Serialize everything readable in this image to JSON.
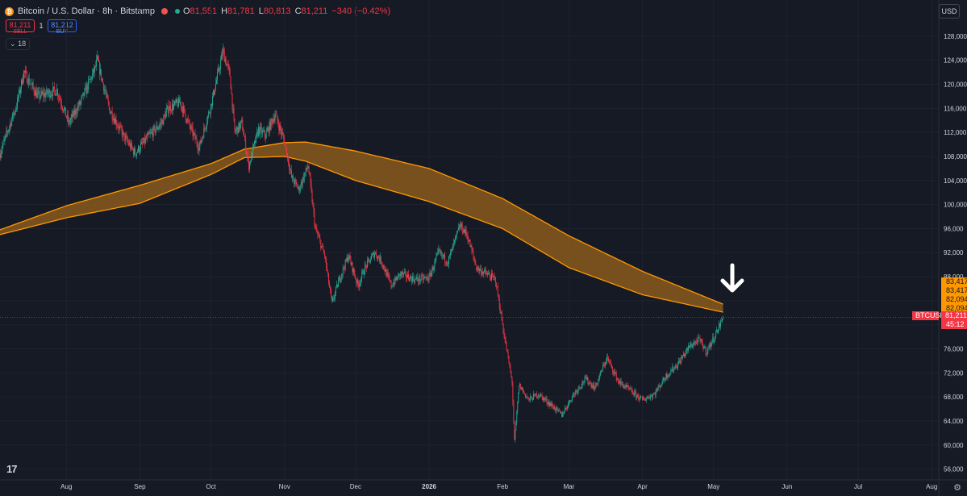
{
  "header": {
    "symbol": "Bitcoin / U.S. Dollar · 8h · Bitstamp",
    "ohlc": [
      {
        "k": "O",
        "v": "81,551"
      },
      {
        "k": "H",
        "v": "81,781"
      },
      {
        "k": "L",
        "v": "80,813"
      },
      {
        "k": "C",
        "v": "81,211"
      }
    ],
    "change": "−340 (−0.42%)",
    "currency": "USD"
  },
  "trade": {
    "sell_price": "81,211",
    "sell_label": "SELL",
    "qty": "1",
    "buy_price": "81,212",
    "buy_label": "BUY"
  },
  "indicators": {
    "count": "18"
  },
  "labels": {
    "band_values": [
      "83,417",
      "83,417",
      "82,094",
      "82,094"
    ],
    "symbol_tag": "BTCUSD",
    "last_price": "81,211",
    "countdown": "45:12"
  },
  "colors": {
    "background": "#161a25",
    "band_fill": "#8a5a1d",
    "band_line": "#ff9800",
    "up": "#22ab94",
    "down": "#f23645",
    "arrow": "#ffffff"
  },
  "chart_data": {
    "type": "candlestick",
    "title": "Bitcoin / U.S. Dollar · 8h · Bitstamp",
    "interval": "8h",
    "yaxis": {
      "ticks": [
        56000,
        60000,
        64000,
        68000,
        72000,
        76000,
        80000,
        84000,
        88000,
        92000,
        96000,
        100000,
        104000,
        108000,
        112000,
        116000,
        120000,
        124000,
        128000
      ],
      "tick_labels": [
        "56,000",
        "60,000",
        "64,000",
        "68,000",
        "72,000",
        "76,000",
        "80,000",
        "84,000",
        "88,000",
        "92,000",
        "96,000",
        "100,000",
        "104,000",
        "108,000",
        "112,000",
        "116,000",
        "120,000",
        "124,000",
        "128,000"
      ],
      "range": [
        54200,
        130000
      ],
      "position": "right"
    },
    "xaxis": {
      "ticks": [
        "Aug",
        "Sep",
        "Oct",
        "Nov",
        "Dec",
        "2026",
        "Feb",
        "Mar",
        "Apr",
        "May",
        "Jun",
        "Jul",
        "Aug"
      ],
      "tick_dates": [
        "2025-08-01",
        "2025-09-01",
        "2025-10-01",
        "2025-11-01",
        "2025-12-01",
        "2026-01-01",
        "2026-02-01",
        "2026-03-01",
        "2026-04-01",
        "2026-05-01",
        "2026-06-01",
        "2026-07-01",
        "2026-08-01"
      ],
      "range": [
        "2025-07-04",
        "2026-08-04"
      ]
    },
    "grid": true,
    "price_path": [
      [
        "2025-07-04",
        108500
      ],
      [
        "2025-07-11",
        116500
      ],
      [
        "2025-07-14",
        122000
      ],
      [
        "2025-07-20",
        118000
      ],
      [
        "2025-07-28",
        119000
      ],
      [
        "2025-08-02",
        113500
      ],
      [
        "2025-08-07",
        117000
      ],
      [
        "2025-08-13",
        122500
      ],
      [
        "2025-08-14",
        124000
      ],
      [
        "2025-08-19",
        116000
      ],
      [
        "2025-08-25",
        111500
      ],
      [
        "2025-08-30",
        108500
      ],
      [
        "2025-09-05",
        111500
      ],
      [
        "2025-09-10",
        113500
      ],
      [
        "2025-09-13",
        116000
      ],
      [
        "2025-09-18",
        117000
      ],
      [
        "2025-09-22",
        113000
      ],
      [
        "2025-09-26",
        109500
      ],
      [
        "2025-10-01",
        116500
      ],
      [
        "2025-10-06",
        125500
      ],
      [
        "2025-10-09",
        121500
      ],
      [
        "2025-10-11",
        112000
      ],
      [
        "2025-10-14",
        113500
      ],
      [
        "2025-10-17",
        106500
      ],
      [
        "2025-10-21",
        112500
      ],
      [
        "2025-10-24",
        111500
      ],
      [
        "2025-10-28",
        115000
      ],
      [
        "2025-11-01",
        110500
      ],
      [
        "2025-11-04",
        104500
      ],
      [
        "2025-11-07",
        102500
      ],
      [
        "2025-11-11",
        106500
      ],
      [
        "2025-11-14",
        96000
      ],
      [
        "2025-11-18",
        91500
      ],
      [
        "2025-11-21",
        83500
      ],
      [
        "2025-11-24",
        87500
      ],
      [
        "2025-11-28",
        91500
      ],
      [
        "2025-12-02",
        86500
      ],
      [
        "2025-12-05",
        89500
      ],
      [
        "2025-12-09",
        92000
      ],
      [
        "2025-12-12",
        90500
      ],
      [
        "2025-12-16",
        86500
      ],
      [
        "2025-12-20",
        88500
      ],
      [
        "2025-12-26",
        87500
      ],
      [
        "2026-01-01",
        87800
      ],
      [
        "2026-01-05",
        92000
      ],
      [
        "2026-01-09",
        90500
      ],
      [
        "2026-01-14",
        96500
      ],
      [
        "2026-01-17",
        95000
      ],
      [
        "2026-01-21",
        89500
      ],
      [
        "2026-01-25",
        88500
      ],
      [
        "2026-01-29",
        87500
      ],
      [
        "2026-02-02",
        77500
      ],
      [
        "2026-02-05",
        70500
      ],
      [
        "2026-02-06",
        60500
      ],
      [
        "2026-02-08",
        70000
      ],
      [
        "2026-02-12",
        67500
      ],
      [
        "2026-02-16",
        68500
      ],
      [
        "2026-02-22",
        66500
      ],
      [
        "2026-02-26",
        65000
      ],
      [
        "2026-03-03",
        68500
      ],
      [
        "2026-03-08",
        71000
      ],
      [
        "2026-03-12",
        69500
      ],
      [
        "2026-03-17",
        74500
      ],
      [
        "2026-03-22",
        70500
      ],
      [
        "2026-03-27",
        69000
      ],
      [
        "2026-04-01",
        67500
      ],
      [
        "2026-04-06",
        68500
      ],
      [
        "2026-04-11",
        71500
      ],
      [
        "2026-04-16",
        73500
      ],
      [
        "2026-04-21",
        76500
      ],
      [
        "2026-04-25",
        77500
      ],
      [
        "2026-04-28",
        75500
      ],
      [
        "2026-05-02",
        78500
      ],
      [
        "2026-05-05",
        81211
      ]
    ],
    "band": {
      "upper": [
        [
          "2025-07-04",
          95800
        ],
        [
          "2025-08-01",
          99800
        ],
        [
          "2025-09-01",
          103200
        ],
        [
          "2025-10-01",
          106800
        ],
        [
          "2025-10-15",
          109200
        ],
        [
          "2025-11-01",
          110300
        ],
        [
          "2025-11-10",
          110400
        ],
        [
          "2025-12-01",
          108900
        ],
        [
          "2026-01-01",
          106000
        ],
        [
          "2026-02-01",
          101000
        ],
        [
          "2026-03-01",
          94800
        ],
        [
          "2026-04-01",
          88900
        ],
        [
          "2026-05-05",
          83417
        ]
      ],
      "lower": [
        [
          "2025-07-04",
          95000
        ],
        [
          "2025-08-01",
          97800
        ],
        [
          "2025-09-01",
          100200
        ],
        [
          "2025-10-01",
          105000
        ],
        [
          "2025-10-15",
          107800
        ],
        [
          "2025-11-01",
          108000
        ],
        [
          "2025-11-10",
          107200
        ],
        [
          "2025-12-01",
          104000
        ],
        [
          "2026-01-01",
          100500
        ],
        [
          "2026-02-01",
          96000
        ],
        [
          "2026-03-01",
          89500
        ],
        [
          "2026-04-01",
          85000
        ],
        [
          "2026-05-05",
          82094
        ]
      ]
    },
    "last_price": 81211,
    "annotation": "down-arrow at latest price"
  }
}
